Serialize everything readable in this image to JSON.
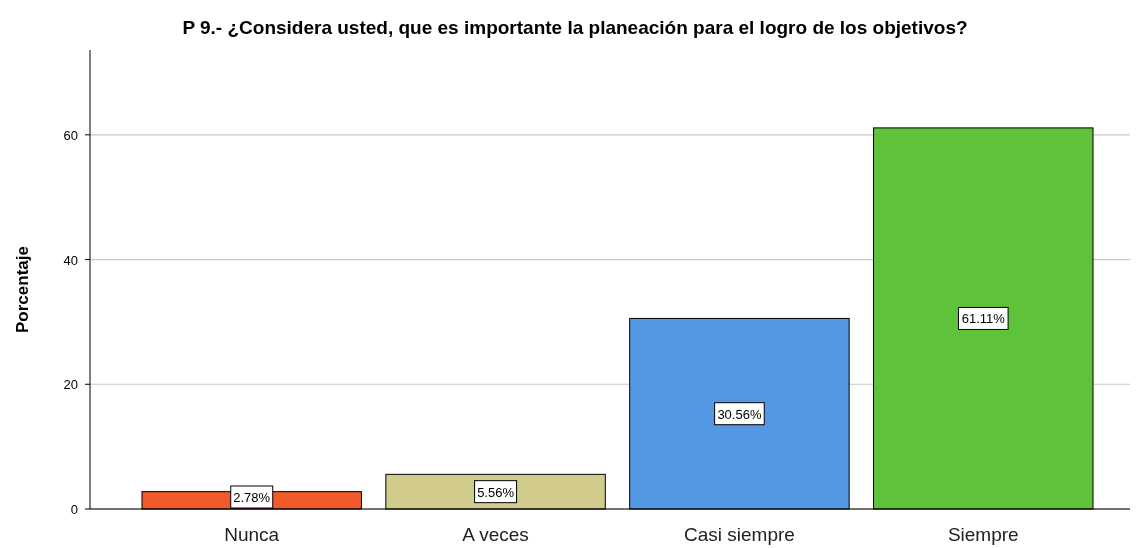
{
  "chart_data": {
    "type": "bar",
    "title": "P 9.- ¿Considera usted, que es importante la planeación para el logro de los objetivos?",
    "ylabel": "Porcentaje",
    "categories": [
      "Nunca",
      "A veces",
      "Casi siempre",
      "Siempre"
    ],
    "values": [
      2.78,
      5.56,
      30.56,
      61.11
    ],
    "colors": [
      "#ef5a28",
      "#d2cc8c",
      "#5497e3",
      "#5ec23a"
    ],
    "value_labels": [
      "2.78%",
      "5.56%",
      "30.56%",
      "61.11%"
    ],
    "ylim": [
      0,
      73.6
    ],
    "yticks": [
      0,
      20,
      40,
      60
    ],
    "grid": "y"
  }
}
